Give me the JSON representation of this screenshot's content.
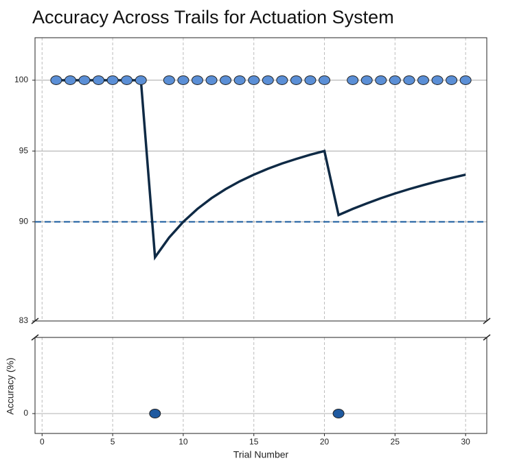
{
  "chart_data": {
    "type": "broken-axis",
    "title": "Accuracy Across Trails for Actuation System",
    "xlabel": "Trial Number",
    "ylabel": "Accuracy (%)",
    "x": [
      1,
      2,
      3,
      4,
      5,
      6,
      7,
      8,
      9,
      10,
      11,
      12,
      13,
      14,
      15,
      16,
      17,
      18,
      19,
      20,
      21,
      22,
      23,
      24,
      25,
      26,
      27,
      28,
      29,
      30
    ],
    "xlim": [
      -0.5,
      31.5
    ],
    "xticks": [
      0,
      5,
      10,
      15,
      20,
      25,
      30
    ],
    "panels": [
      {
        "ylim": [
          83,
          103
        ],
        "yticks": [
          83,
          90,
          95,
          100
        ]
      },
      {
        "ylim": [
          -1.5,
          5.75
        ],
        "yticks": [
          0
        ]
      }
    ],
    "series": [
      {
        "style": "markers",
        "color": "#5b8fd6",
        "values": [
          100,
          100,
          100,
          100,
          100,
          100,
          100,
          0,
          100,
          100,
          100,
          100,
          100,
          100,
          100,
          100,
          100,
          100,
          100,
          100,
          0,
          100,
          100,
          100,
          100,
          100,
          100,
          100,
          100,
          100
        ]
      },
      {
        "style": "line",
        "color": "#0f2a45",
        "values": [
          100,
          100,
          100,
          100,
          100,
          100,
          100,
          87.5,
          88.89,
          90,
          90.91,
          91.67,
          92.31,
          92.86,
          93.33,
          93.75,
          94.12,
          94.44,
          94.74,
          95,
          90.48,
          90.91,
          91.3,
          91.67,
          92,
          92.31,
          92.59,
          92.86,
          93.1,
          93.33
        ]
      }
    ],
    "hlines": [
      {
        "value": 90,
        "color": "#1f5fa0",
        "style": "dashed"
      }
    ],
    "grid": true
  }
}
